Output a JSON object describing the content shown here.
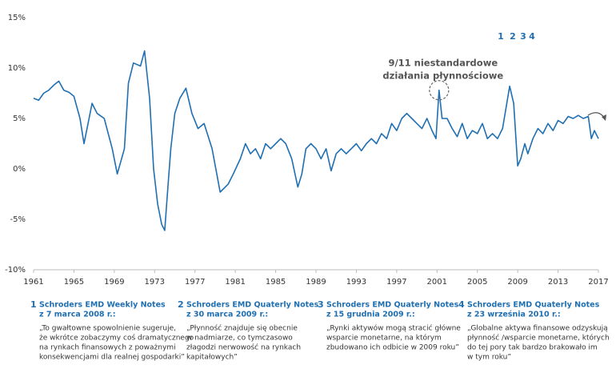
{
  "chart_data": {
    "type": "line",
    "x": [
      1961,
      1961.5,
      1962,
      1962.5,
      1963,
      1963.5,
      1964,
      1964.5,
      1965,
      1965.6,
      1966,
      1966.8,
      1967.3,
      1968,
      1968.8,
      1969.3,
      1970,
      1970.4,
      1970.9,
      1971.6,
      1972,
      1972.5,
      1972.9,
      1973.3,
      1973.7,
      1974,
      1974.3,
      1974.6,
      1975,
      1975.5,
      1976.1,
      1976.7,
      1977.3,
      1977.9,
      1978.7,
      1979.5,
      1980.3,
      1980.8,
      1981.5,
      1982,
      1982.5,
      1983,
      1983.5,
      1984,
      1984.5,
      1985,
      1985.5,
      1986,
      1986.6,
      1987.2,
      1987.6,
      1988,
      1988.5,
      1989,
      1989.5,
      1990,
      1990.5,
      1991,
      1991.5,
      1992,
      1992.5,
      1993,
      1993.5,
      1994,
      1994.5,
      1995,
      1995.5,
      1996,
      1996.5,
      1997,
      1997.5,
      1998,
      1998.5,
      1999,
      1999.5,
      2000,
      2000.5,
      2000.9,
      2001.2,
      2001.5,
      2002,
      2002.5,
      2003,
      2003.5,
      2004,
      2004.5,
      2005,
      2005.5,
      2006,
      2006.5,
      2007,
      2007.5,
      2008.2,
      2008.6,
      2009,
      2009.3,
      2009.7,
      2010,
      2010.5,
      2011,
      2011.5,
      2012,
      2012.5,
      2013,
      2013.5,
      2014,
      2014.5,
      2015,
      2015.5,
      2016,
      2016.3,
      2016.6,
      2017
    ],
    "series": [
      {
        "color": "#1f6fb2",
        "values": [
          7.0,
          6.8,
          7.5,
          7.8,
          8.3,
          8.7,
          7.8,
          7.6,
          7.2,
          5.0,
          2.5,
          6.5,
          5.5,
          5.0,
          2.0,
          -0.5,
          2.0,
          8.5,
          10.5,
          10.2,
          11.7,
          7.0,
          0,
          -3.5,
          -5.5,
          -6.1,
          -2.0,
          2.0,
          5.5,
          7.0,
          8.0,
          5.5,
          4.0,
          4.5,
          2.0,
          -2.3,
          -1.5,
          -0.5,
          1.0,
          2.5,
          1.5,
          2.0,
          1.0,
          2.5,
          2.0,
          2.5,
          3.0,
          2.5,
          1.0,
          -1.8,
          -0.5,
          2.0,
          2.5,
          2.0,
          1.0,
          2.0,
          -0.2,
          1.5,
          2.0,
          1.5,
          2.0,
          2.5,
          1.8,
          2.5,
          3.0,
          2.5,
          3.5,
          3.0,
          4.5,
          3.8,
          5.0,
          5.5,
          5.0,
          4.5,
          4.0,
          5.0,
          3.8,
          3.0,
          7.8,
          5.0,
          5.0,
          4.0,
          3.2,
          4.5,
          3.0,
          3.8,
          3.5,
          4.5,
          3.0,
          3.5,
          3.0,
          4.0,
          8.2,
          6.5,
          0.3,
          1.0,
          2.5,
          1.5,
          3.0,
          4.0,
          3.5,
          4.5,
          3.8,
          4.8,
          4.5,
          5.2,
          5.0,
          5.3,
          5.0,
          5.2,
          3.0,
          3.8,
          3.0
        ]
      }
    ],
    "xlim": [
      1961,
      2017
    ],
    "xticks": [
      1961,
      1965,
      1969,
      1973,
      1977,
      1981,
      1985,
      1989,
      1993,
      1997,
      2001,
      2005,
      2009,
      2013,
      2017
    ],
    "ylim": [
      -10,
      15
    ],
    "yticks": [
      {
        "value": -10,
        "label": "-10%"
      },
      {
        "value": -5,
        "label": "-5%"
      },
      {
        "value": 0,
        "label": "0%"
      },
      {
        "value": 5,
        "label": "5%"
      },
      {
        "value": 10,
        "label": "10%"
      },
      {
        "value": 15,
        "label": "15%"
      }
    ],
    "grid": false,
    "annotation": {
      "lines": [
        "9/11 niestandardowe",
        "działania płynnościowe"
      ],
      "x": 2001.2,
      "y": 7.8
    },
    "markers": [
      "1",
      "2",
      "3",
      "4"
    ],
    "notes": [
      {
        "number": "1",
        "title": [
          "Schroders EMD Weekly Notes",
          "z 7 marca 2008 r.:"
        ],
        "text": [
          "„To gwałtowne spowolnienie sugeruje,",
          "że wkrótce zobaczymy coś dramatycznego",
          "na rynkach finansowych z poważnymi",
          "konsekwencjami dla realnej gospodarki”"
        ]
      },
      {
        "number": "2",
        "title": [
          "Schroders EMD Quaterly Notes",
          "z 30 marca 2009 r.:"
        ],
        "text": [
          "„Płynność znajduje się obecnie",
          "w nadmiarze, co tymczasowo",
          "złagodzi nerwowość na rynkach",
          "kapitałowych”"
        ]
      },
      {
        "number": "3",
        "title": [
          "Schroders EMD Quaterly Notes",
          "z 15 grudnia 2009 r.:"
        ],
        "text": [
          "„Rynki aktywów mogą stracić główne",
          "wsparcie monetarne, na którym",
          "zbudowano ich odbicie w 2009 roku”"
        ]
      },
      {
        "number": "4",
        "title": [
          "Schroders EMD Quaterly Notes",
          "z 23 września 2010 r.:"
        ],
        "text": [
          "„Globalne aktywa finansowe odzyskują",
          "płynność /wsparcie monetarne, których",
          "do tej pory tak bardzo brakowało im",
          "w tym roku”"
        ]
      }
    ]
  }
}
